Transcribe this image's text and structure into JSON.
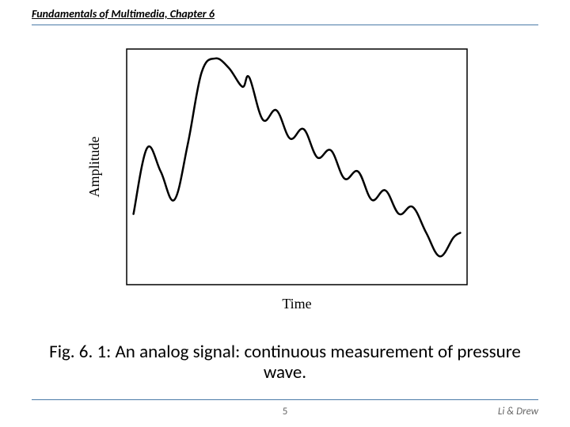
{
  "header": {
    "text": "Fundamentals of Multimedia, Chapter 6",
    "rule_color": "#4a7aa8"
  },
  "figure": {
    "type": "line",
    "xlabel": "Time",
    "ylabel": "Amplitude",
    "label_fontsize": 18,
    "label_font": "serif",
    "line_color": "#000000",
    "line_width": 2.5,
    "background_color": "#ffffff",
    "border_color": "#000000",
    "border_width": 1.5,
    "xlim": [
      0,
      100
    ],
    "ylim": [
      0,
      100
    ],
    "points": [
      [
        2,
        30
      ],
      [
        6,
        58
      ],
      [
        10,
        48
      ],
      [
        14,
        36
      ],
      [
        18,
        60
      ],
      [
        22,
        90
      ],
      [
        26,
        96
      ],
      [
        30,
        92
      ],
      [
        34,
        84
      ],
      [
        36,
        88
      ],
      [
        40,
        70
      ],
      [
        44,
        74
      ],
      [
        48,
        62
      ],
      [
        52,
        66
      ],
      [
        56,
        54
      ],
      [
        60,
        57
      ],
      [
        64,
        45
      ],
      [
        68,
        48
      ],
      [
        72,
        36
      ],
      [
        76,
        40
      ],
      [
        80,
        30
      ],
      [
        84,
        33
      ],
      [
        88,
        22
      ],
      [
        92,
        12
      ],
      [
        96,
        20
      ],
      [
        98,
        22
      ]
    ]
  },
  "caption": "Fig. 6. 1: An analog signal: continuous measurement of pressure wave.",
  "footer": {
    "page_number": "5",
    "authors": "Li & Drew",
    "rule_color": "#4a7aa8"
  }
}
